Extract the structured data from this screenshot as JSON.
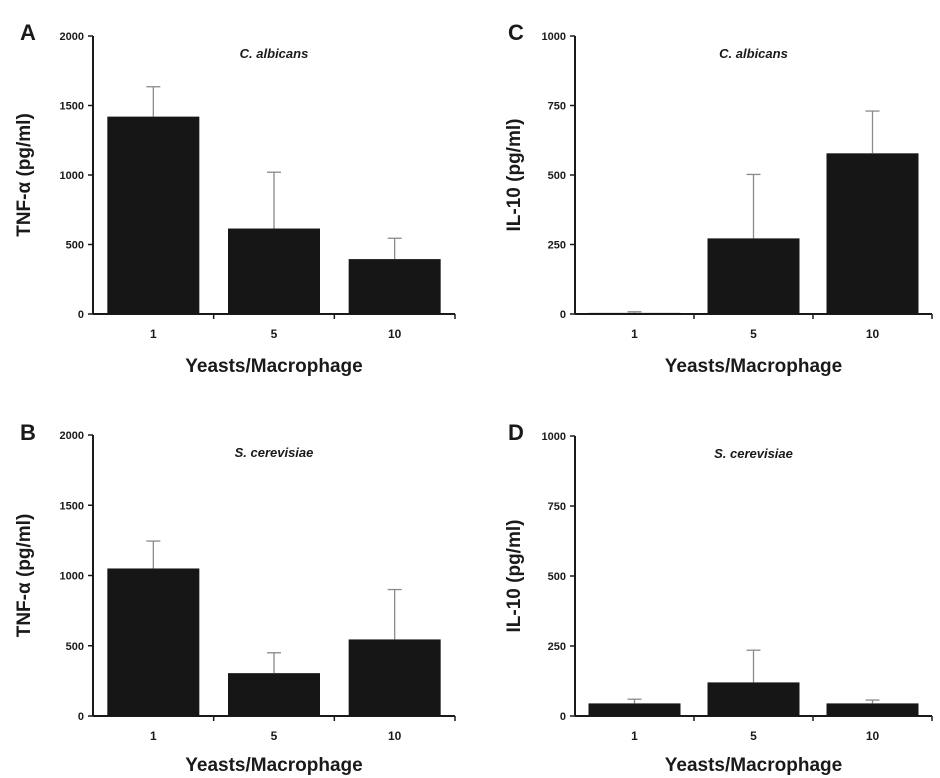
{
  "chart_data": [
    {
      "panel": "A",
      "type": "bar",
      "title": "C. albicans",
      "xlabel": "Yeasts/Macrophage",
      "ylabel": "TNF-α (pg/ml)",
      "categories": [
        "1",
        "5",
        "10"
      ],
      "values": [
        1420,
        615,
        395
      ],
      "errors": [
        215,
        405,
        150
      ],
      "ylim": [
        0,
        2000
      ],
      "yticks": [
        "0",
        "500",
        "1000",
        "1500",
        "2000"
      ],
      "bar_color": "#161616"
    },
    {
      "panel": "C",
      "type": "bar",
      "title": "C. albicans",
      "xlabel": "Yeasts/Macrophage",
      "ylabel": "IL-10 (pg/ml)",
      "categories": [
        "1",
        "5",
        "10"
      ],
      "values": [
        4,
        272,
        578
      ],
      "errors": [
        4,
        230,
        152
      ],
      "ylim": [
        0,
        1000
      ],
      "yticks": [
        "0",
        "250",
        "500",
        "750",
        "1000"
      ],
      "bar_color": "#161616"
    },
    {
      "panel": "B",
      "type": "bar",
      "title": "S. cerevisiae",
      "xlabel": "Yeasts/Macrophage",
      "ylabel": "TNF-α (pg/ml)",
      "categories": [
        "1",
        "5",
        "10"
      ],
      "values": [
        1050,
        305,
        545
      ],
      "errors": [
        195,
        145,
        355
      ],
      "ylim": [
        0,
        2000
      ],
      "yticks": [
        "0",
        "500",
        "1000",
        "1500",
        "2000"
      ],
      "bar_color": "#161616"
    },
    {
      "panel": "D",
      "type": "bar",
      "title": "S. cerevisiae",
      "xlabel": "Yeasts/Macrophage",
      "ylabel": "IL-10 (pg/ml)",
      "categories": [
        "1",
        "5",
        "10"
      ],
      "values": [
        45,
        120,
        45
      ],
      "errors": [
        15,
        115,
        12
      ],
      "ylim": [
        0,
        1000
      ],
      "yticks": [
        "0",
        "250",
        "500",
        "750",
        "1000"
      ],
      "bar_color": "#161616"
    }
  ]
}
